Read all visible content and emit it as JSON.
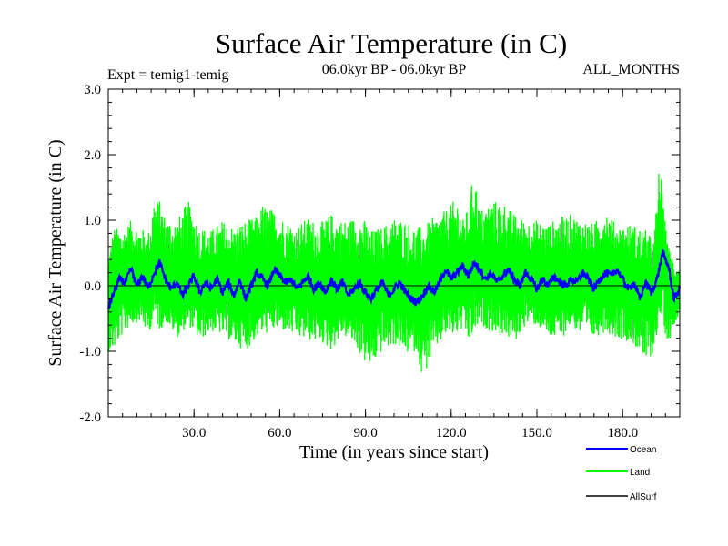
{
  "chart_data": {
    "type": "line",
    "title": "Surface Air Temperature (in C)",
    "experiment_label": "Expt = temig1-temig",
    "period_label": "06.0kyr BP - 06.0kyr BP",
    "months_label": "ALL_MONTHS",
    "xlabel": "Time (in years since start)",
    "ylabel": "Surface Air Temperature (in C)",
    "xlim": [
      0,
      200
    ],
    "ylim": [
      -2.0,
      3.0
    ],
    "x_ticks": [
      30,
      60,
      90,
      120,
      150,
      180
    ],
    "x_tick_labels": [
      "30.0",
      "60.0",
      "90.0",
      "120.0",
      "150.0",
      "180.0"
    ],
    "y_ticks": [
      -2.0,
      -1.0,
      0.0,
      1.0,
      2.0,
      3.0
    ],
    "y_tick_labels": [
      "-2.0",
      "-1.0",
      "0.0",
      "1.0",
      "2.0",
      "3.0"
    ],
    "zero_line": 0.0,
    "series": [
      {
        "name": "Land",
        "color": "#00ff00",
        "description": "monthly series, approx. range",
        "x": [
          0,
          2,
          5,
          8,
          11,
          14,
          16,
          18,
          20,
          24,
          28,
          32,
          36,
          40,
          44,
          48,
          52,
          54,
          58,
          62,
          66,
          70,
          74,
          78,
          82,
          86,
          90,
          92,
          96,
          100,
          104,
          108,
          110,
          114,
          118,
          122,
          124,
          126,
          128,
          130,
          134,
          138,
          142,
          146,
          150,
          154,
          158,
          162,
          166,
          170,
          174,
          178,
          182,
          186,
          188,
          191,
          193,
          194,
          196,
          198,
          200
        ],
        "max": [
          0.5,
          0.9,
          0.85,
          1.0,
          0.9,
          0.8,
          1.35,
          1.3,
          1.05,
          1.0,
          1.3,
          0.9,
          0.85,
          1.0,
          0.9,
          1.0,
          1.05,
          1.25,
          1.15,
          1.0,
          0.9,
          1.05,
          0.95,
          1.1,
          1.0,
          1.05,
          1.0,
          0.85,
          0.9,
          1.05,
          1.0,
          0.9,
          0.9,
          1.05,
          1.15,
          1.35,
          1.0,
          1.2,
          1.8,
          1.15,
          1.3,
          1.3,
          1.1,
          1.0,
          1.0,
          0.95,
          1.05,
          1.1,
          1.0,
          0.95,
          1.2,
          0.9,
          0.95,
          0.9,
          0.85,
          0.7,
          2.0,
          1.3,
          0.6,
          0.4,
          0.3
        ],
        "min": [
          -1.0,
          -1.0,
          -0.75,
          -0.6,
          -0.55,
          -0.75,
          -0.5,
          -0.7,
          -0.55,
          -0.8,
          -0.6,
          -0.85,
          -0.7,
          -0.75,
          -0.9,
          -1.0,
          -0.8,
          -0.75,
          -0.7,
          -0.7,
          -0.8,
          -0.85,
          -0.85,
          -1.0,
          -0.75,
          -0.9,
          -1.2,
          -1.25,
          -1.0,
          -0.9,
          -1.05,
          -1.0,
          -1.45,
          -1.0,
          -0.8,
          -0.75,
          -0.7,
          -0.9,
          -0.75,
          -0.6,
          -0.7,
          -0.75,
          -0.9,
          -0.6,
          -0.6,
          -0.8,
          -0.85,
          -0.6,
          -0.8,
          -0.8,
          -0.7,
          -0.8,
          -0.85,
          -1.0,
          -1.25,
          -1.0,
          -0.5,
          -0.6,
          -0.9,
          -0.6,
          -0.4
        ]
      },
      {
        "name": "Ocean",
        "color": "#0000ff",
        "description": "smoothed ocean-mean anomaly",
        "x": [
          0,
          2,
          4,
          6,
          8,
          10,
          12,
          14,
          16,
          18,
          20,
          22,
          24,
          26,
          28,
          30,
          32,
          34,
          36,
          38,
          40,
          42,
          44,
          46,
          48,
          50,
          52,
          54,
          56,
          58,
          60,
          62,
          64,
          66,
          68,
          70,
          72,
          74,
          76,
          78,
          80,
          82,
          84,
          86,
          88,
          90,
          92,
          94,
          96,
          98,
          100,
          102,
          104,
          106,
          108,
          110,
          112,
          114,
          116,
          118,
          120,
          122,
          124,
          126,
          128,
          130,
          132,
          134,
          136,
          138,
          140,
          142,
          144,
          146,
          148,
          150,
          152,
          154,
          156,
          158,
          160,
          162,
          164,
          166,
          168,
          170,
          172,
          174,
          176,
          178,
          180,
          182,
          184,
          186,
          188,
          190,
          192,
          194,
          196,
          198,
          200
        ],
        "values": [
          -0.35,
          -0.1,
          0.1,
          0.05,
          0.25,
          0.0,
          0.15,
          -0.05,
          0.2,
          0.35,
          0.1,
          -0.05,
          0.05,
          -0.15,
          0.0,
          0.15,
          -0.1,
          0.05,
          -0.05,
          0.1,
          -0.1,
          0.05,
          -0.15,
          0.1,
          -0.2,
          0.0,
          0.2,
          0.1,
          0.0,
          0.25,
          0.15,
          0.05,
          0.1,
          -0.05,
          0.05,
          0.15,
          -0.05,
          0.05,
          -0.1,
          0.1,
          -0.05,
          0.05,
          -0.15,
          -0.05,
          0.05,
          -0.1,
          -0.2,
          -0.05,
          0.05,
          -0.15,
          -0.05,
          0.05,
          -0.1,
          -0.2,
          -0.25,
          -0.15,
          0.0,
          -0.1,
          0.05,
          0.25,
          0.1,
          0.2,
          0.3,
          0.15,
          0.35,
          0.25,
          0.1,
          0.2,
          0.05,
          0.15,
          0.25,
          0.1,
          0.0,
          0.2,
          0.1,
          -0.05,
          0.1,
          0.0,
          0.15,
          0.05,
          0.0,
          0.1,
          0.05,
          0.2,
          0.1,
          -0.05,
          0.1,
          0.2,
          0.15,
          0.25,
          0.1,
          -0.05,
          0.05,
          -0.2,
          0.05,
          -0.1,
          0.1,
          0.5,
          0.3,
          -0.2,
          -0.05
        ]
      },
      {
        "name": "AllSurf",
        "color": "#000000",
        "values": []
      }
    ],
    "legend": {
      "placement": "bottom-right",
      "entries": [
        "Ocean",
        "Land",
        "AllSurf"
      ]
    }
  }
}
